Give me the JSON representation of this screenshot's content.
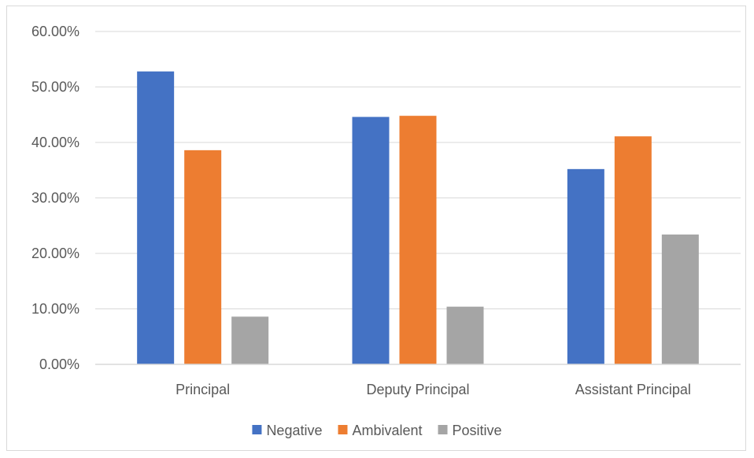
{
  "chart_data": {
    "type": "bar",
    "categories": [
      "Principal",
      "Deputy Principal",
      "Assistant Principal"
    ],
    "series": [
      {
        "name": "Negative",
        "values": [
          0.528,
          0.446,
          0.352
        ],
        "color": "#4472c4"
      },
      {
        "name": "Ambivalent",
        "values": [
          0.386,
          0.448,
          0.411
        ],
        "color": "#ed7d31"
      },
      {
        "name": "Positive",
        "values": [
          0.086,
          0.104,
          0.234
        ],
        "color": "#a5a5a5"
      }
    ],
    "y_ticks": [
      "0.00%",
      "10.00%",
      "20.00%",
      "30.00%",
      "40.00%",
      "50.00%",
      "60.00%"
    ],
    "ylim": [
      0,
      0.6
    ],
    "grid": true,
    "legend_position": "bottom",
    "title": "",
    "xlabel": "",
    "ylabel": ""
  }
}
